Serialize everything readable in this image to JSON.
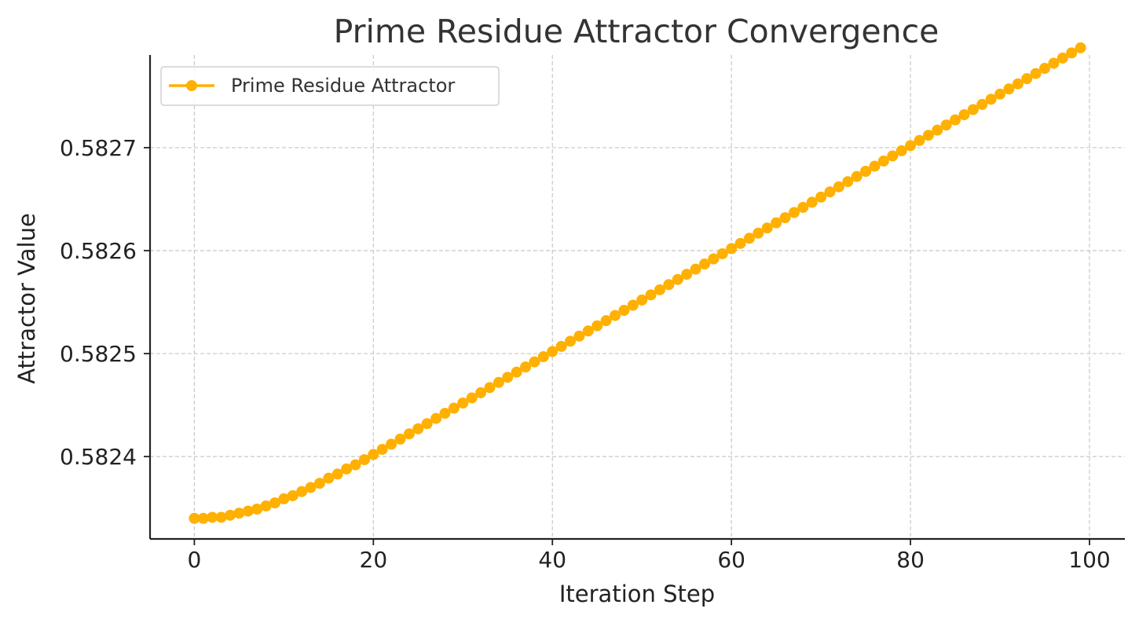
{
  "chart_data": {
    "type": "line",
    "title": "Prime Residue Attractor Convergence",
    "xlabel": "Iteration Step",
    "ylabel": "Attractor Value",
    "xlim": [
      -4.95,
      103.95
    ],
    "ylim": [
      0.58232,
      0.58279
    ],
    "xticks": [
      0,
      20,
      40,
      60,
      80,
      100
    ],
    "xtick_labels": [
      "0",
      "20",
      "40",
      "60",
      "80",
      "100"
    ],
    "yticks": [
      0.5824,
      0.5825,
      0.5826,
      0.5827
    ],
    "ytick_labels": [
      "0.5824",
      "0.5825",
      "0.5826",
      "0.5827"
    ],
    "grid": true,
    "legend": {
      "position": "top-left",
      "entries": [
        "Prime Residue Attractor"
      ]
    },
    "series": [
      {
        "name": "Prime Residue Attractor",
        "color": "#FFB000",
        "marker": "circle",
        "x": [
          0,
          1,
          2,
          3,
          4,
          5,
          6,
          7,
          8,
          9,
          10,
          11,
          12,
          13,
          14,
          15,
          16,
          17,
          18,
          19,
          20,
          21,
          22,
          23,
          24,
          25,
          26,
          27,
          28,
          29,
          30,
          31,
          32,
          33,
          34,
          35,
          36,
          37,
          38,
          39,
          40,
          41,
          42,
          43,
          44,
          45,
          46,
          47,
          48,
          49,
          50,
          51,
          52,
          53,
          54,
          55,
          56,
          57,
          58,
          59,
          60,
          61,
          62,
          63,
          64,
          65,
          66,
          67,
          68,
          69,
          70,
          71,
          72,
          73,
          74,
          75,
          75,
          76,
          77,
          78,
          79,
          80,
          81,
          82,
          83,
          84,
          85,
          86,
          87,
          88,
          89,
          90,
          91,
          92,
          93,
          94,
          95,
          96,
          97,
          98,
          99
        ],
        "y": [
          0.58234,
          0.58234,
          0.582341,
          0.582341,
          0.582343,
          0.582345,
          0.582347,
          0.582349,
          0.582352,
          0.582355,
          0.582359,
          0.582362,
          0.582366,
          0.58237,
          0.582374,
          0.582379,
          0.582383,
          0.582388,
          0.582392,
          0.582397,
          0.582402,
          0.582407,
          0.582412,
          0.582417,
          0.582422,
          0.582427,
          0.582432,
          0.582437,
          0.582442,
          0.582447,
          0.582452,
          0.582457,
          0.582462,
          0.582467,
          0.582472,
          0.582477,
          0.582482,
          0.582487,
          0.582492,
          0.582497,
          0.582502,
          0.582507,
          0.582512,
          0.582517,
          0.582522,
          0.582527,
          0.582532,
          0.582537,
          0.582542,
          0.582547,
          0.582552,
          0.582557,
          0.582562,
          0.582567,
          0.582572,
          0.582577,
          0.582582,
          0.582587,
          0.582592,
          0.582597,
          0.582602,
          0.582607,
          0.582612,
          0.582617,
          0.582622,
          0.582627,
          0.582632,
          0.582637,
          0.582642,
          0.582647,
          0.582652,
          0.582657,
          0.582662,
          0.582667,
          0.582672,
          0.582677,
          0.582677,
          0.582682,
          0.582687,
          0.582692,
          0.582697,
          0.582702,
          0.582707,
          0.582712,
          0.582717,
          0.582722,
          0.582727,
          0.582732,
          0.582737,
          0.582742,
          0.582747,
          0.582752,
          0.582757,
          0.582762,
          0.582767,
          0.582772,
          0.582777,
          0.582782,
          0.582787,
          0.582792,
          0.582797
        ]
      }
    ]
  }
}
